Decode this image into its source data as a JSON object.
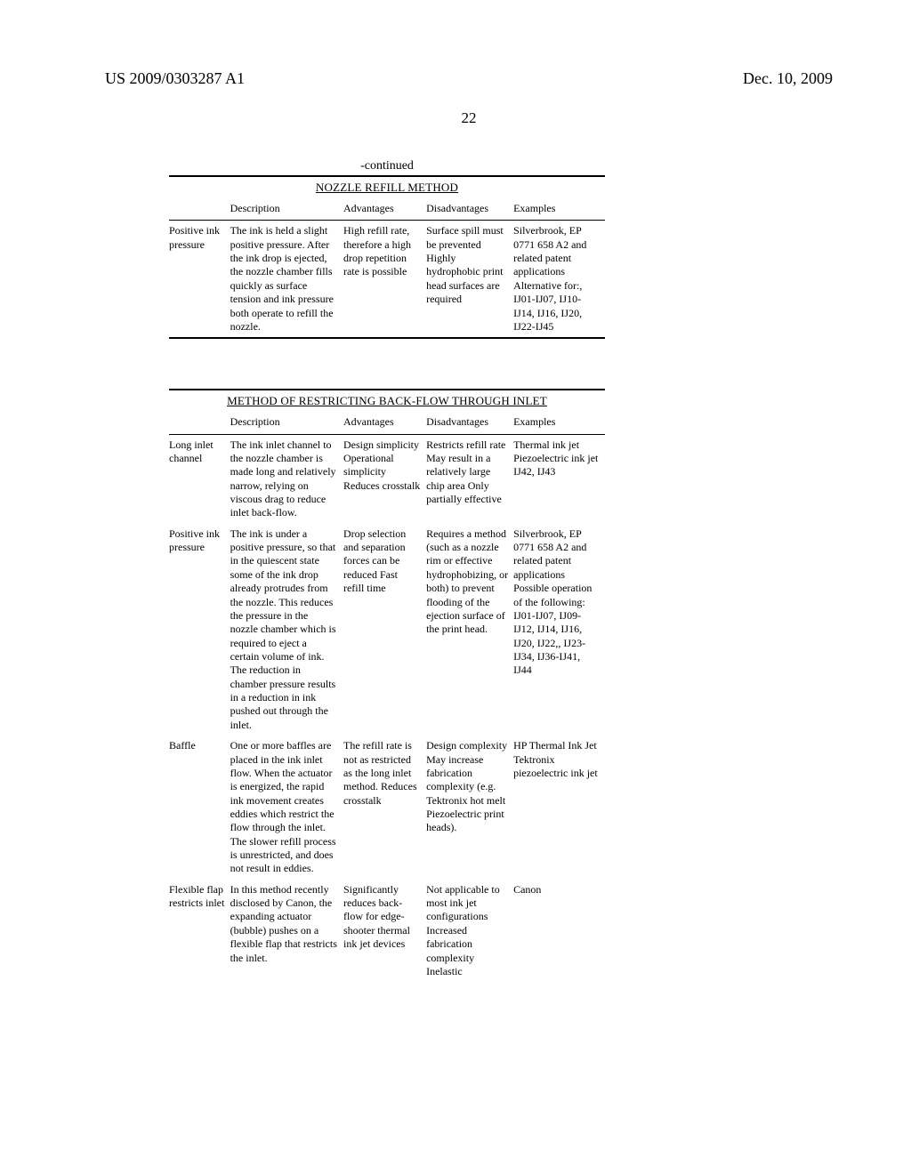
{
  "header": {
    "pub_no": "US 2009/0303287 A1",
    "pub_date": "Dec. 10, 2009"
  },
  "page_number": "22",
  "table1": {
    "continued": "-continued",
    "title": "NOZZLE REFILL METHOD",
    "columns": [
      "",
      "Description",
      "Advantages",
      "Disadvantages",
      "Examples"
    ],
    "rows": [
      {
        "c0": "Positive ink pressure",
        "c1": "The ink is held a slight positive pressure. After the ink drop is ejected, the nozzle chamber fills quickly as surface tension and ink pressure both operate to refill the nozzle.",
        "c2": "High refill rate, therefore a high drop repetition rate is possible",
        "c3": "Surface spill must be prevented Highly hydrophobic print head surfaces are required",
        "c4": "Silverbrook, EP 0771 658 A2 and related patent applications Alternative for:, IJ01-IJ07, IJ10-IJ14, IJ16, IJ20, IJ22-IJ45"
      }
    ]
  },
  "table2": {
    "title": "METHOD OF RESTRICTING BACK-FLOW THROUGH INLET",
    "columns": [
      "",
      "Description",
      "Advantages",
      "Disadvantages",
      "Examples"
    ],
    "rows": [
      {
        "c0": "Long inlet channel",
        "c1": "The ink inlet channel to the nozzle chamber is made long and relatively narrow, relying on viscous drag to reduce inlet back-flow.",
        "c2": "Design simplicity Operational simplicity Reduces crosstalk",
        "c3": "Restricts refill rate May result in a relatively large chip area Only partially effective",
        "c4": "Thermal ink jet Piezoelectric ink jet IJ42, IJ43"
      },
      {
        "c0": "Positive ink pressure",
        "c1": "The ink is under a positive pressure, so that in the quiescent state some of the ink drop already protrudes from the nozzle. This reduces the pressure in the nozzle chamber which is required to eject a certain volume of ink. The reduction in chamber pressure results in a reduction in ink pushed out through the inlet.",
        "c2": "Drop selection and separation forces can be reduced Fast refill time",
        "c3": "Requires a method (such as a nozzle rim or effective hydrophobizing, or both) to prevent flooding of the ejection surface of the print head.",
        "c4": "Silverbrook, EP 0771 658 A2 and related patent applications Possible operation of the following: IJ01-IJ07, IJ09-IJ12, IJ14, IJ16, IJ20, IJ22,, IJ23-IJ34, IJ36-IJ41, IJ44"
      },
      {
        "c0": "Baffle",
        "c1": "One or more baffles are placed in the ink inlet flow. When the actuator is energized, the rapid ink movement creates eddies which restrict the flow through the inlet. The slower refill process is unrestricted, and does not result in eddies.",
        "c2": "The refill rate is not as restricted as the long inlet method. Reduces crosstalk",
        "c3": "Design complexity May increase fabrication complexity (e.g. Tektronix hot melt Piezoelectric print heads).",
        "c4": "HP Thermal Ink Jet Tektronix piezoelectric ink jet"
      },
      {
        "c0": "Flexible flap restricts inlet",
        "c1": "In this method recently disclosed by Canon, the expanding actuator (bubble) pushes on a flexible flap that restricts the inlet.",
        "c2": "Significantly reduces back-flow for edge-shooter thermal ink jet devices",
        "c3": "Not applicable to most ink jet configurations Increased fabrication complexity Inelastic",
        "c4": "Canon"
      }
    ]
  }
}
